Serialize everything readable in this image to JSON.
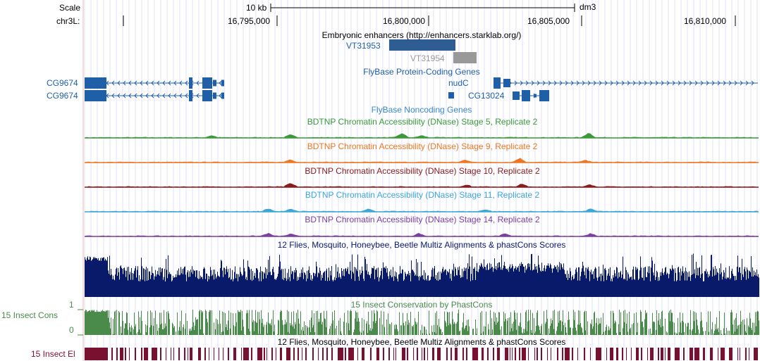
{
  "header": {
    "scale_label": "Scale",
    "scale_bar_text": "10 kb",
    "assembly": "dm3",
    "chrom_label": "chr3L:",
    "positions": [
      "16,795,000",
      "16,800,000",
      "16,805,000",
      "16,810,000"
    ]
  },
  "tracks": {
    "enhancers": {
      "title": "Embryonic enhancers (http://enhancers.starklab.org/)",
      "items": [
        "VT31953",
        "VT31954"
      ]
    },
    "flybase_coding": {
      "title": "FlyBase Protein-Coding Genes",
      "genes": [
        "CG9674",
        "CG9674",
        "nudC",
        "CG13024"
      ]
    },
    "flybase_noncoding": {
      "title": "FlyBase Noncoding Genes"
    },
    "dnase": [
      {
        "title": "BDTNP Chromatin Accessibility (DNase) Stage 5, Replicate 2",
        "color": "#3a9a3a"
      },
      {
        "title": "BDTNP Chromatin Accessibility (DNase) Stage 9, Replicate 2",
        "color": "#ee7722"
      },
      {
        "title": "BDTNP Chromatin Accessibility (DNase) Stage 10, Replicate 2",
        "color": "#8b1a1a"
      },
      {
        "title": "BDTNP Chromatin Accessibility (DNase) Stage 11, Replicate 2",
        "color": "#3da6d8"
      },
      {
        "title": "BDTNP Chromatin Accessibility (DNase) Stage 14, Replicate 2",
        "color": "#7a3fa0"
      }
    ],
    "multiz": {
      "title": "12 Flies, Mosquito, Honeybee, Beetle Multiz Alignments & phastCons Scores",
      "color": "#0a1a6a"
    },
    "insect_cons": {
      "title": "15 Insect Conservation by PhastCons",
      "left_label": "15 Insect Cons",
      "axis_max": "1",
      "axis_min": "0",
      "color": "#4a8a4a"
    },
    "multiz2": {
      "title": "12 Flies, Mosquito, Honeybee, Beetle Multiz Alignments & phastCons Scores"
    },
    "insect_el": {
      "left_label": "15 Insect El",
      "color": "#7a1030"
    }
  },
  "colors": {
    "gene_blue": "#1f5fa8",
    "enhancer_blue": "#2e5c93",
    "enhancer_gray": "#999999",
    "grid_blue": "#c8c8f0",
    "grid_red": "#f0b4b4"
  }
}
